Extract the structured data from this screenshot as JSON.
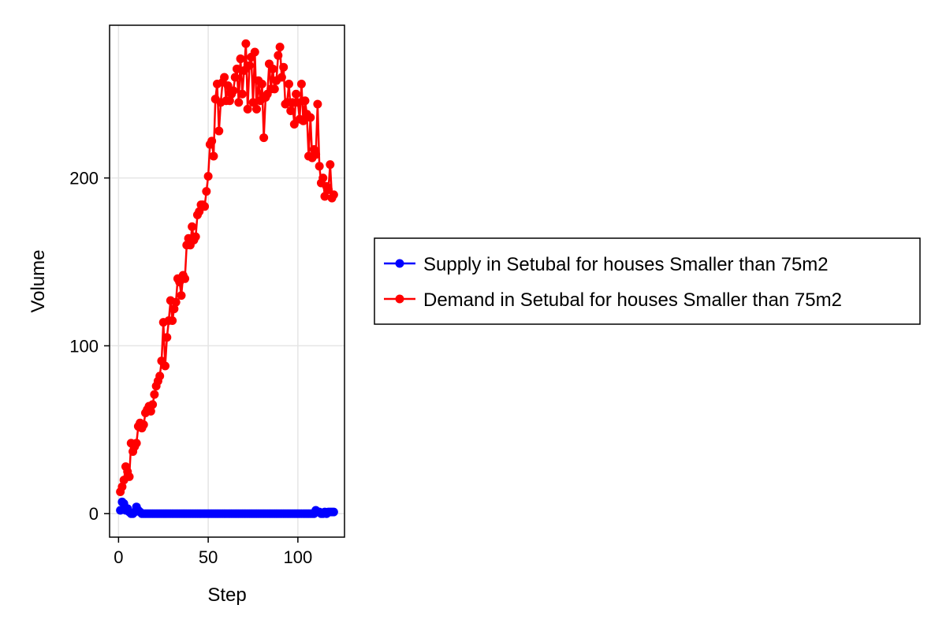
{
  "chart_data": {
    "type": "line",
    "title": "",
    "xlabel": "Step",
    "ylabel": "Volume",
    "xlim": [
      -5,
      126
    ],
    "ylim": [
      -14,
      291
    ],
    "xticks": [
      0,
      50,
      100
    ],
    "yticks": [
      0,
      100,
      200
    ],
    "grid": true,
    "legend_position": "right",
    "markers": true,
    "series": [
      {
        "name": "Supply in Setubal for houses Smaller than 75m2",
        "color": "#0000ff",
        "x": [
          1,
          2,
          3,
          4,
          5,
          6,
          7,
          8,
          9,
          10,
          11,
          12,
          13,
          14,
          15,
          16,
          17,
          18,
          19,
          20,
          21,
          22,
          23,
          24,
          25,
          26,
          27,
          28,
          29,
          30,
          31,
          32,
          33,
          34,
          35,
          36,
          37,
          38,
          39,
          40,
          41,
          42,
          43,
          44,
          45,
          46,
          47,
          48,
          49,
          50,
          51,
          52,
          53,
          54,
          55,
          56,
          57,
          58,
          59,
          60,
          61,
          62,
          63,
          64,
          65,
          66,
          67,
          68,
          69,
          70,
          71,
          72,
          73,
          74,
          75,
          76,
          77,
          78,
          79,
          80,
          81,
          82,
          83,
          84,
          85,
          86,
          87,
          88,
          89,
          90,
          91,
          92,
          93,
          94,
          95,
          96,
          97,
          98,
          99,
          100,
          101,
          102,
          103,
          104,
          105,
          106,
          107,
          108,
          109,
          110,
          111,
          112,
          113,
          114,
          115,
          116,
          117,
          118,
          119,
          120
        ],
        "y": [
          2,
          7,
          6,
          2,
          3,
          1,
          0,
          0,
          1,
          4,
          2,
          1,
          0,
          0,
          0,
          0,
          0,
          0,
          0,
          0,
          0,
          0,
          0,
          0,
          0,
          0,
          0,
          0,
          0,
          0,
          0,
          0,
          0,
          0,
          0,
          0,
          0,
          0,
          0,
          0,
          0,
          0,
          0,
          0,
          0,
          0,
          0,
          0,
          0,
          0,
          0,
          0,
          0,
          0,
          0,
          0,
          0,
          0,
          0,
          0,
          0,
          0,
          0,
          0,
          0,
          0,
          0,
          0,
          0,
          0,
          0,
          0,
          0,
          0,
          0,
          0,
          0,
          0,
          0,
          0,
          0,
          0,
          0,
          0,
          0,
          0,
          0,
          0,
          0,
          0,
          0,
          0,
          0,
          0,
          0,
          0,
          0,
          0,
          0,
          0,
          0,
          0,
          0,
          0,
          0,
          0,
          0,
          0,
          0,
          2,
          1,
          1,
          0,
          0,
          1,
          0,
          1,
          1,
          1,
          1
        ]
      },
      {
        "name": "Demand in Setubal for houses Smaller than 75m2",
        "color": "#ff0000",
        "x": [
          1,
          2,
          3,
          4,
          5,
          6,
          7,
          8,
          9,
          10,
          11,
          12,
          13,
          14,
          15,
          16,
          17,
          18,
          19,
          20,
          21,
          22,
          23,
          24,
          25,
          26,
          27,
          28,
          29,
          30,
          31,
          32,
          33,
          34,
          35,
          36,
          37,
          38,
          39,
          40,
          41,
          42,
          43,
          44,
          45,
          46,
          47,
          48,
          49,
          50,
          51,
          52,
          53,
          54,
          55,
          56,
          57,
          58,
          59,
          60,
          61,
          62,
          63,
          64,
          65,
          66,
          67,
          68,
          69,
          70,
          71,
          72,
          73,
          74,
          75,
          76,
          77,
          78,
          79,
          80,
          81,
          82,
          83,
          84,
          85,
          86,
          87,
          88,
          89,
          90,
          91,
          92,
          93,
          94,
          95,
          96,
          97,
          98,
          99,
          100,
          101,
          102,
          103,
          104,
          105,
          106,
          107,
          108,
          109,
          110,
          111,
          112,
          113,
          114,
          115,
          116,
          117,
          118,
          119,
          120
        ],
        "y": [
          13,
          16,
          20,
          28,
          25,
          22,
          42,
          37,
          40,
          42,
          52,
          54,
          51,
          53,
          60,
          62,
          64,
          61,
          65,
          71,
          76,
          79,
          82,
          91,
          114,
          88,
          105,
          115,
          127,
          115,
          122,
          126,
          140,
          138,
          130,
          142,
          140,
          160,
          164,
          160,
          171,
          163,
          165,
          178,
          180,
          184,
          184,
          183,
          192,
          201,
          220,
          222,
          213,
          247,
          256,
          228,
          245,
          257,
          260,
          246,
          255,
          246,
          250,
          252,
          260,
          265,
          245,
          271,
          250,
          264,
          280,
          241,
          267,
          272,
          245,
          275,
          241,
          258,
          246,
          256,
          224,
          248,
          250,
          268,
          253,
          265,
          253,
          258,
          273,
          278,
          260,
          266,
          244,
          245,
          256,
          240,
          245,
          232,
          250,
          245,
          235,
          256,
          234,
          246,
          238,
          213,
          236,
          212,
          217,
          214,
          244,
          207,
          197,
          200,
          189,
          195,
          193,
          208,
          188,
          190
        ]
      }
    ]
  }
}
